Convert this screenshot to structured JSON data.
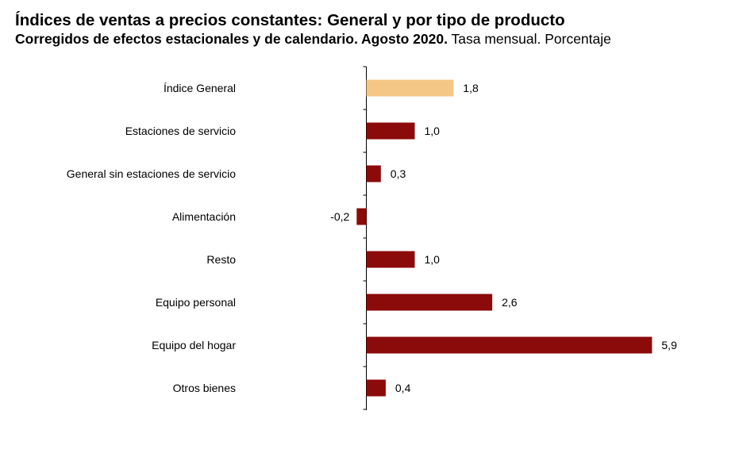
{
  "title": "Índices de ventas a precios constantes: General y por tipo de producto",
  "subtitle_bold": "Corregidos de efectos estacionales y de calendario. Agosto 2020.",
  "subtitle_normal": "Tasa mensual. Porcentaje",
  "colors": {
    "highlight": "#F5C787",
    "bar": "#8B0A0A",
    "axis": "#000000"
  },
  "chart_data": {
    "type": "bar",
    "orientation": "horizontal",
    "categories": [
      "Índice General",
      "Estaciones de servicio",
      "General sin estaciones de servicio",
      "Alimentación",
      "Resto",
      "Equipo personal",
      "Equipo del hogar",
      "Otros bienes"
    ],
    "values": [
      1.8,
      1.0,
      0.3,
      -0.2,
      1.0,
      2.6,
      5.9,
      0.4
    ],
    "value_labels": [
      "1,8",
      "1,0",
      "0,3",
      "-0,2",
      "1,0",
      "2,6",
      "5,9",
      "0,4"
    ],
    "highlight_index": 0,
    "grid": false,
    "legend": "none"
  }
}
